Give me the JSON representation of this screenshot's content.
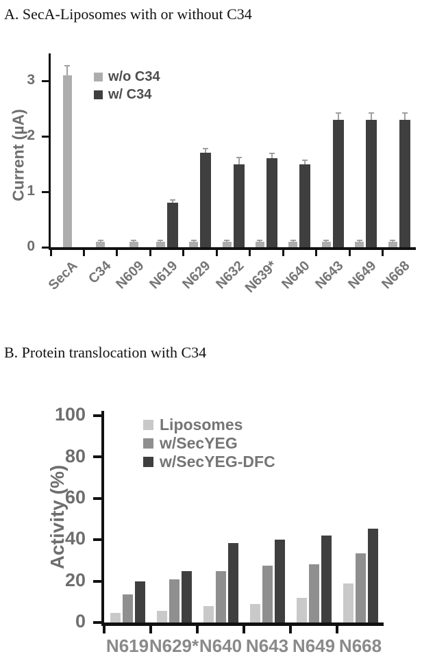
{
  "figure": {
    "background": "#ffffff",
    "panel_a_label": "A.",
    "panel_b_label": "B."
  },
  "chart_data": [
    {
      "type": "bar",
      "title": "A. SecA-Liposomes with or without C34",
      "xlabel": "",
      "ylabel": "Current (µA)",
      "ylim": [
        0,
        3.5
      ],
      "yticks": [
        0,
        1,
        2,
        3
      ],
      "grid": false,
      "legend_position": "top-left-inside",
      "categories": [
        "SecA",
        "C34",
        "N609",
        "N619",
        "N629",
        "N632",
        "N639*",
        "N640",
        "N643",
        "N649",
        "N668"
      ],
      "series": [
        {
          "name": "w/o C34",
          "color": "#adadad",
          "values": [
            3.1,
            0.1,
            0.1,
            0.1,
            0.1,
            0.1,
            0.1,
            0.1,
            0.1,
            0.1,
            0.1
          ],
          "errors": [
            0.17,
            0.02,
            0.02,
            0.02,
            0.02,
            0.02,
            0.02,
            0.02,
            0.02,
            0.02,
            0.02
          ]
        },
        {
          "name": "w/ C34",
          "color": "#3f3f3f",
          "values": [
            null,
            null,
            null,
            0.8,
            1.7,
            1.5,
            1.6,
            1.5,
            2.3,
            2.3,
            2.3
          ],
          "errors": [
            null,
            null,
            null,
            0.05,
            0.08,
            0.12,
            0.09,
            0.07,
            0.12,
            0.12,
            0.12
          ]
        }
      ]
    },
    {
      "type": "bar",
      "title": "B. Protein translocation with C34",
      "xlabel": "",
      "ylabel": "Activity (%)",
      "ylim": [
        0,
        105
      ],
      "yticks": [
        0,
        20,
        40,
        60,
        80,
        100
      ],
      "grid": false,
      "legend_position": "top-left-inside",
      "categories": [
        "N619",
        "N629*",
        "N640",
        "N643",
        "N649",
        "N668"
      ],
      "series": [
        {
          "name": "Liposomes",
          "color": "#c9c9c9",
          "values": [
            4.5,
            5.5,
            8,
            9,
            12,
            19
          ]
        },
        {
          "name": "w/SecYEG",
          "color": "#8f8f8f",
          "values": [
            13.5,
            21,
            25,
            27.5,
            28,
            33.5
          ]
        },
        {
          "name": "w/SecYEG-DFC",
          "color": "#3f3f3f",
          "values": [
            20,
            25,
            38.5,
            40,
            42,
            45.5
          ]
        }
      ]
    }
  ]
}
